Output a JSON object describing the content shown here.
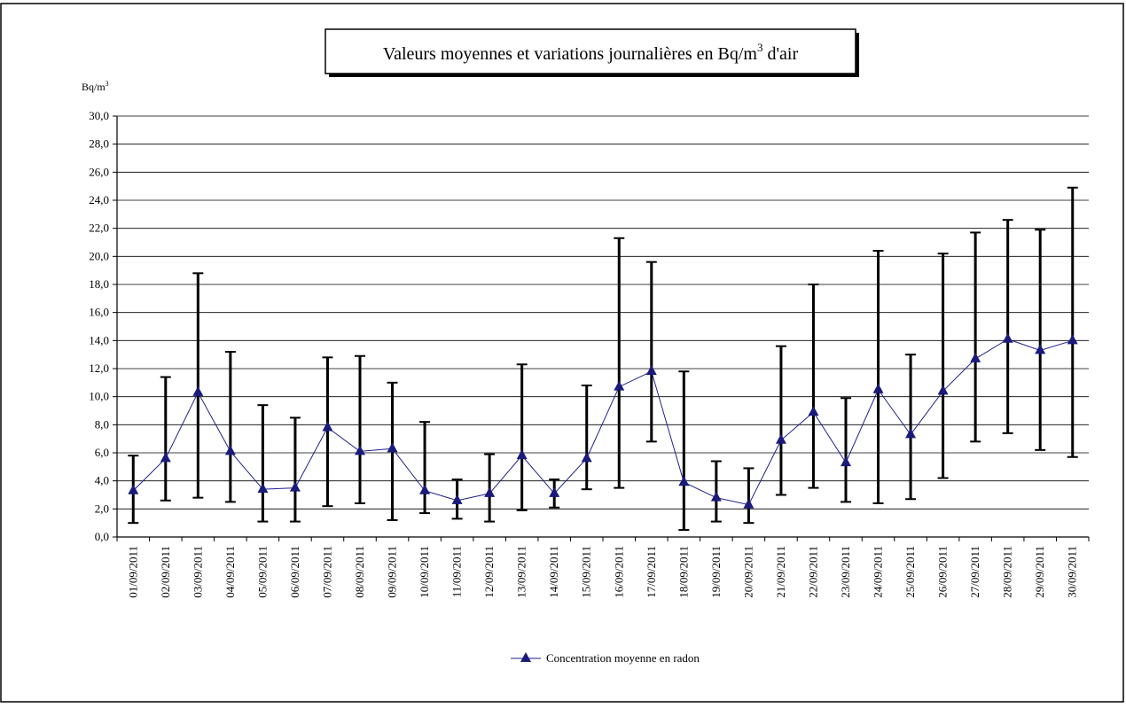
{
  "chart_data": {
    "type": "line",
    "title": "Valeurs moyennes et variations journalières en Bq/m",
    "title_sup": "3",
    "title_suffix": " d'air",
    "ylabel": "Bq/m",
    "ylabel_sup": "3",
    "ylim": [
      0,
      30
    ],
    "ytick_step": 2,
    "ytick_labels": [
      "0,0",
      "2,0",
      "4,0",
      "6,0",
      "8,0",
      "10,0",
      "12,0",
      "14,0",
      "16,0",
      "18,0",
      "20,0",
      "22,0",
      "24,0",
      "26,0",
      "28,0",
      "30,0"
    ],
    "grid": true,
    "legend_position": "bottom-center",
    "line_color": "#1f1f8f",
    "marker_color": "#1a1a7a",
    "errorbar_color": "#000000",
    "categories": [
      "01/09/2011",
      "02/09/2011",
      "03/09/2011",
      "04/09/2011",
      "05/09/2011",
      "06/09/2011",
      "07/09/2011",
      "08/09/2011",
      "09/09/2011",
      "10/09/2011",
      "11/09/2011",
      "12/09/2011",
      "13/09/2011",
      "14/09/2011",
      "15/09/2011",
      "16/09/2011",
      "17/09/2011",
      "18/09/2011",
      "19/09/2011",
      "20/09/2011",
      "21/09/2011",
      "22/09/2011",
      "23/09/2011",
      "24/09/2011",
      "25/09/2011",
      "26/09/2011",
      "27/09/2011",
      "28/09/2011",
      "29/09/2011",
      "30/09/2011"
    ],
    "series": [
      {
        "name": "Concentration moyenne en radon",
        "values": [
          3.3,
          5.6,
          10.3,
          6.1,
          3.4,
          3.5,
          7.8,
          6.1,
          6.3,
          3.3,
          2.6,
          3.1,
          5.8,
          3.1,
          5.6,
          10.7,
          11.8,
          3.9,
          2.8,
          2.3,
          6.9,
          8.9,
          5.3,
          10.5,
          7.3,
          10.4,
          12.7,
          14.1,
          13.3,
          14.0
        ],
        "min": [
          1.0,
          2.6,
          2.8,
          2.5,
          1.1,
          1.1,
          2.2,
          2.4,
          1.2,
          1.7,
          1.3,
          1.1,
          1.9,
          2.1,
          3.4,
          3.5,
          6.8,
          0.5,
          1.1,
          1.0,
          3.0,
          3.5,
          2.5,
          2.4,
          2.7,
          4.2,
          6.8,
          7.4,
          6.2,
          5.7
        ],
        "max": [
          5.8,
          11.4,
          18.8,
          13.2,
          9.4,
          8.5,
          12.8,
          12.9,
          11.0,
          8.2,
          4.1,
          5.9,
          12.3,
          4.1,
          10.8,
          21.3,
          19.6,
          11.8,
          5.4,
          4.9,
          13.6,
          18.0,
          9.9,
          20.4,
          13.0,
          20.2,
          21.7,
          22.6,
          21.9,
          24.9
        ]
      }
    ]
  }
}
